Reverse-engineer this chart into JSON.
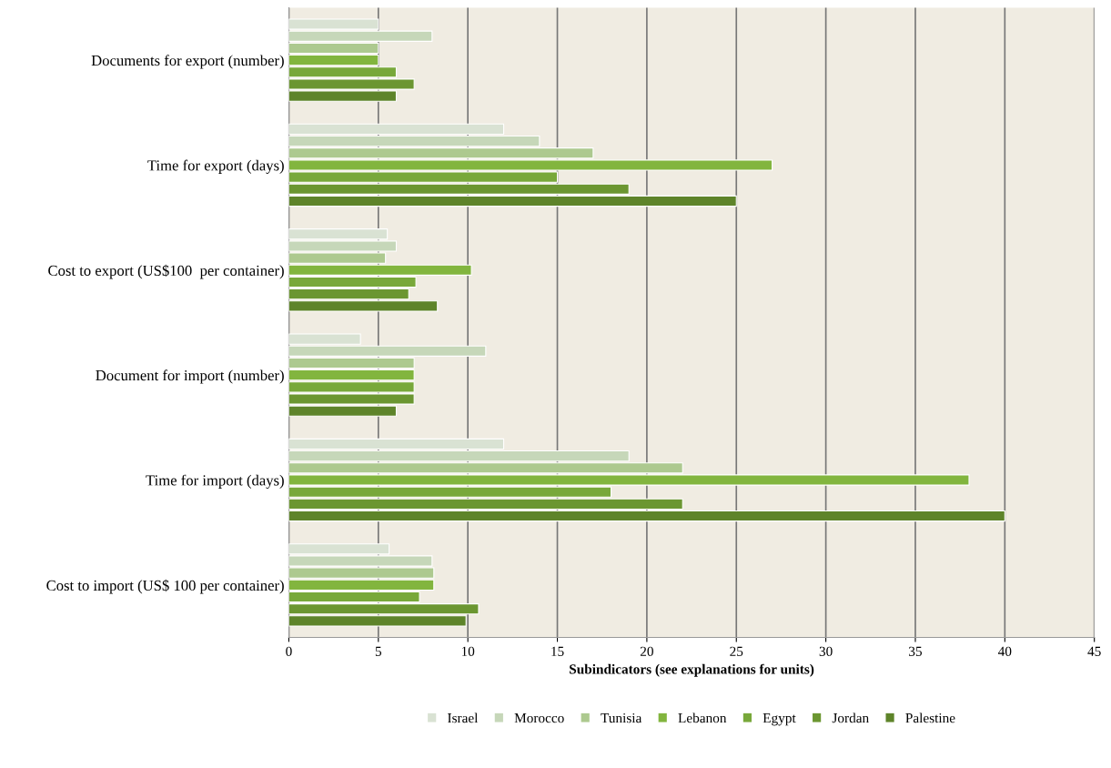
{
  "chart_data": {
    "type": "bar",
    "orientation": "horizontal",
    "xlabel": "Subindicators (see explanations for units)",
    "categories": [
      "Documents for export (number)",
      "Time for export (days)",
      "Cost to export (US$100  per container)",
      "Document for import (number)",
      "Time for import (days)",
      "Cost to import (US$ 100 per container)"
    ],
    "series": [
      {
        "name": "Israel",
        "color": "#d9e2d3",
        "values": [
          5,
          12,
          5.5,
          4,
          12,
          5.6
        ]
      },
      {
        "name": "Morocco",
        "color": "#c6d7b9",
        "values": [
          8,
          14,
          6.0,
          11,
          19,
          8.0
        ]
      },
      {
        "name": "Tunisia",
        "color": "#adc98f",
        "values": [
          5,
          17,
          5.4,
          7,
          22,
          8.1
        ]
      },
      {
        "name": "Lebanon",
        "color": "#82b53e",
        "values": [
          5,
          27,
          10.2,
          7,
          38,
          8.1
        ]
      },
      {
        "name": "Egypt",
        "color": "#78a83a",
        "values": [
          6,
          15,
          7.1,
          7,
          18,
          7.3
        ]
      },
      {
        "name": "Jordan",
        "color": "#6b9631",
        "values": [
          7,
          19,
          6.7,
          7,
          22,
          10.6
        ]
      },
      {
        "name": "Palestine",
        "color": "#5e842a",
        "values": [
          6,
          25,
          8.3,
          6,
          40,
          9.9
        ]
      }
    ],
    "xlim": [
      0,
      45
    ],
    "xticks": [
      0,
      5,
      10,
      15,
      20,
      25,
      30,
      35,
      40,
      45
    ],
    "grid": "x",
    "legend": "bottom"
  }
}
